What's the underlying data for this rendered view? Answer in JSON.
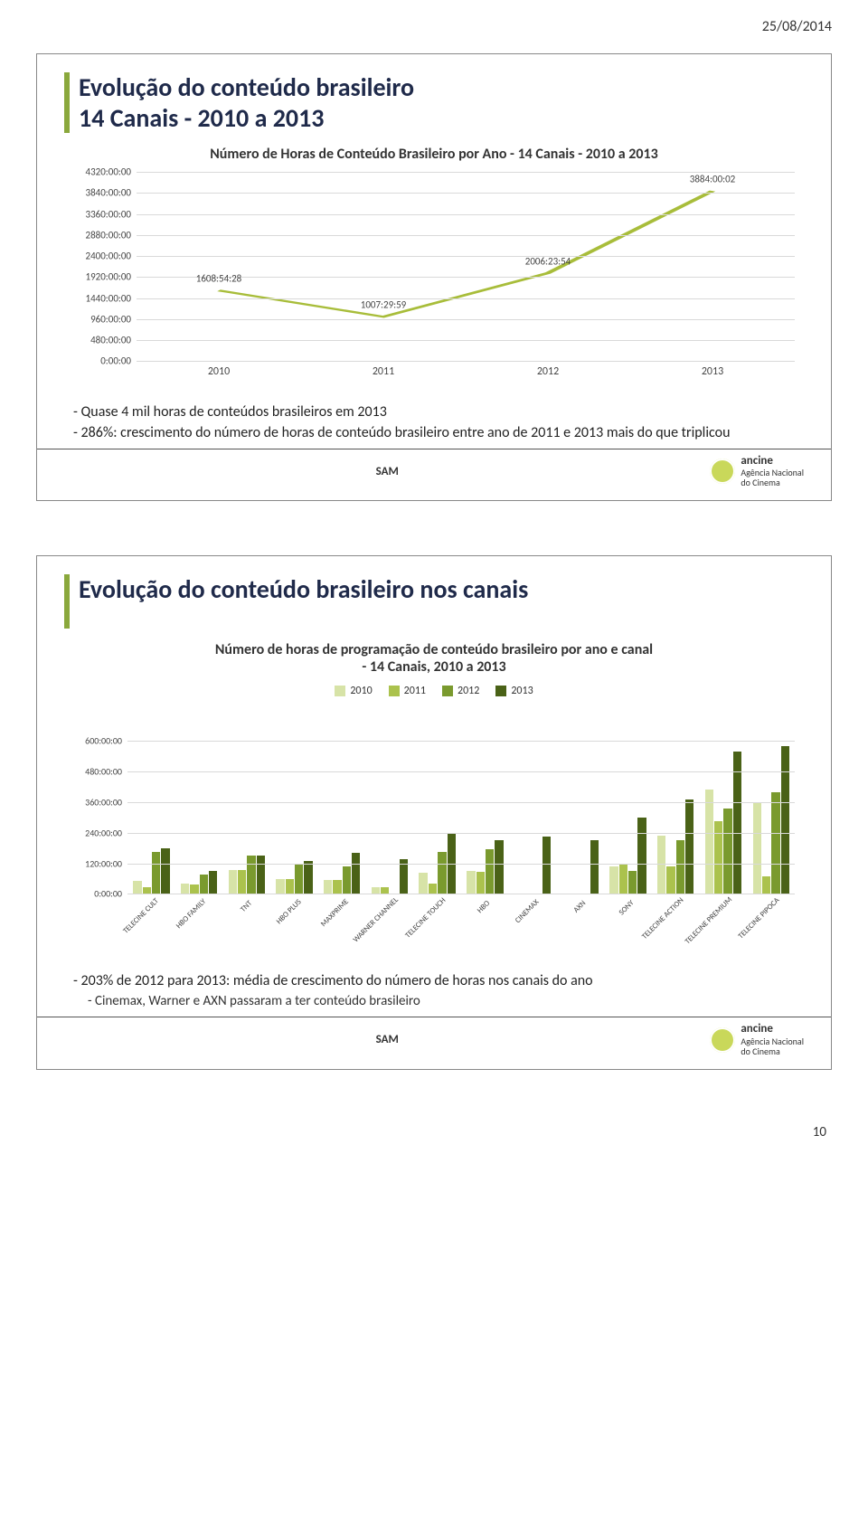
{
  "page_date": "25/08/2014",
  "page_number": "10",
  "sam_label": "SAM",
  "logo": {
    "brand": "ancine",
    "tagline": "Agência Nacional\ndo Cinema"
  },
  "slide1": {
    "title": "Evolução do conteúdo brasileiro\n14 Canais - 2010 a 2013",
    "chart_title": "Número de Horas de Conteúdo Brasileiro por Ano - 14 Canais - 2010 a 2013",
    "chart": {
      "type": "line",
      "y_ticks": [
        "0:00:00",
        "480:00:00",
        "960:00:00",
        "1440:00:00",
        "1920:00:00",
        "2400:00:00",
        "2880:00:00",
        "3360:00:00",
        "3840:00:00",
        "4320:00:00"
      ],
      "y_max_minutes": 259200,
      "x_labels": [
        "2010",
        "2011",
        "2012",
        "2013"
      ],
      "points": [
        {
          "label": "1608:54:28",
          "value_minutes": 96534
        },
        {
          "label": "1007:29:59",
          "value_minutes": 60450
        },
        {
          "label": "2006:23:54",
          "value_minutes": 120384
        },
        {
          "label": "3884:00:02",
          "value_minutes": 233040
        }
      ],
      "line_color": "#a8bd3a",
      "line_width": 2.5,
      "grid_color": "#d9d9d9",
      "label_fontsize": 11
    },
    "bullets": [
      "- Quase 4 mil horas de conteúdos brasileiros em 2013",
      "- 286%: crescimento do número de horas de conteúdo brasileiro entre ano de 2011 e 2013 mais do que triplicou"
    ]
  },
  "slide2": {
    "title": "Evolução do conteúdo brasileiro nos canais",
    "chart_title": "Número de horas de programação de conteúdo brasileiro por ano e canal\n- 14 Canais, 2010 a 2013",
    "chart": {
      "type": "bar",
      "y_ticks": [
        "0:00:00",
        "120:00:00",
        "240:00:00",
        "360:00:00",
        "480:00:00",
        "600:00:00"
      ],
      "y_max": 600,
      "series": [
        {
          "name": "2010",
          "color": "#d7e3a7"
        },
        {
          "name": "2011",
          "color": "#abc24d"
        },
        {
          "name": "2012",
          "color": "#7a9a2e"
        },
        {
          "name": "2013",
          "color": "#4a6217"
        }
      ],
      "categories": [
        "TELECINE CULT",
        "HBO FAMILY",
        "TNT",
        "HBO PLUS",
        "MAXPRIME",
        "WARNER CHANNEL",
        "TELECINE TOUCH",
        "HBO",
        "CINEMAX",
        "AXN",
        "SONY",
        "TELECINE ACTION",
        "TELECINE PREMIUM",
        "TELECINE PIPOCA"
      ],
      "data": [
        [
          50,
          28,
          165,
          180
        ],
        [
          40,
          36,
          75,
          90
        ],
        [
          95,
          95,
          150,
          150
        ],
        [
          60,
          58,
          115,
          130
        ],
        [
          55,
          56,
          110,
          160
        ],
        [
          25,
          27,
          0,
          135
        ],
        [
          85,
          40,
          165,
          240
        ],
        [
          90,
          88,
          175,
          210
        ],
        [
          0,
          0,
          0,
          225
        ],
        [
          0,
          0,
          0,
          210
        ],
        [
          110,
          115,
          90,
          300
        ],
        [
          230,
          108,
          210,
          370
        ],
        [
          410,
          285,
          335,
          560
        ],
        [
          360,
          70,
          400,
          580
        ]
      ],
      "grid_color": "#d9d9d9",
      "label_fontsize": 10
    },
    "bullets": [
      "- 203% de 2012 para 2013: média de crescimento do número de horas nos canais do ano"
    ],
    "sub_bullet": "- Cinemax, Warner e AXN passaram a ter conteúdo brasileiro"
  }
}
